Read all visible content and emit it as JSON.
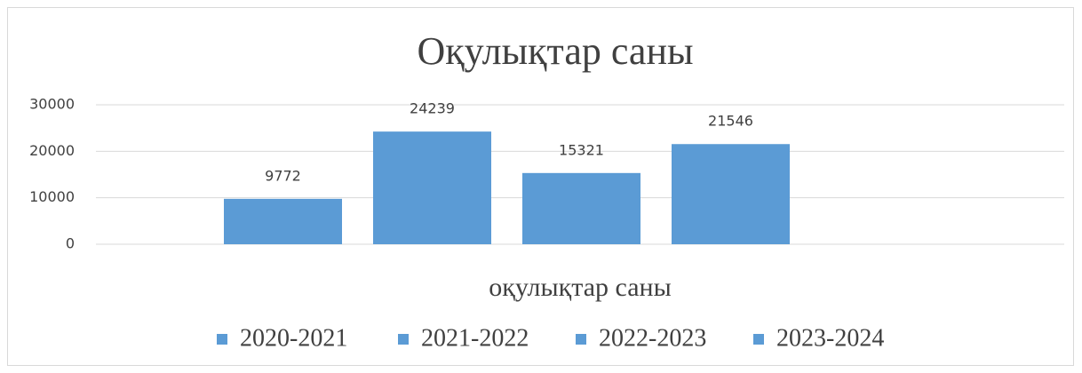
{
  "chart_data": {
    "type": "bar",
    "title": "Оқулықтар саны",
    "categories": [
      "оқулықтар саны"
    ],
    "series": [
      {
        "name": "2020-2021",
        "color": "#5b9bd5",
        "values": [
          9772
        ]
      },
      {
        "name": "2021-2022",
        "color": "#5b9bd5",
        "values": [
          24239
        ]
      },
      {
        "name": "2022-2023",
        "color": "#5b9bd5",
        "values": [
          15321
        ]
      },
      {
        "name": "2023-2024",
        "color": "#5b9bd5",
        "values": [
          21546
        ]
      }
    ],
    "ylim": [
      0,
      30000
    ],
    "yticks": [
      0,
      10000,
      20000,
      30000
    ],
    "grid": true,
    "legend": "bottom"
  }
}
